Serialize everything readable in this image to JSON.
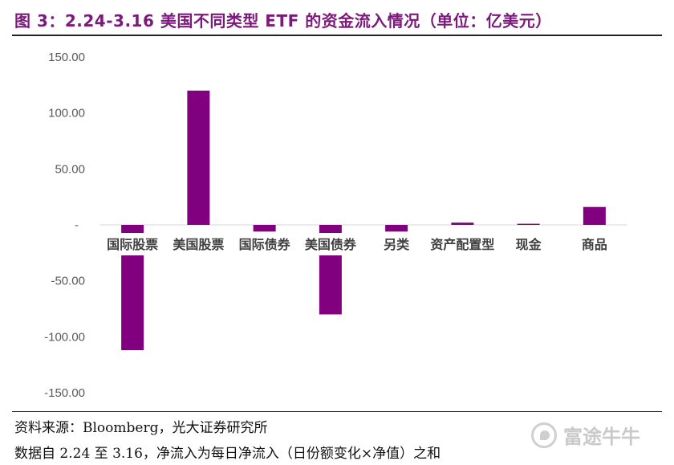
{
  "title": "图 3：2.24-3.16 美国不同类型 ETF 的资金流入情况（单位：亿美元）",
  "source": "资料来源：Bloomberg，光大证券研究所",
  "note": "数据自 2.24 至 3.16，净流入为每日净流入（日份额变化×净值）之和",
  "watermark": "富途牛牛",
  "chart_data": {
    "type": "bar",
    "categories": [
      "国际股票",
      "美国股票",
      "国际债券",
      "美国债券",
      "另类",
      "资产配置型",
      "现金",
      "商品"
    ],
    "values": [
      -112,
      120,
      -6,
      -80,
      -6,
      2,
      1,
      16
    ],
    "ylim": [
      -150,
      150
    ],
    "yticks": [
      150,
      100,
      50,
      0,
      -50,
      -100,
      -150
    ],
    "ytick_labels": [
      "150.00",
      "100.00",
      "50.00",
      "-",
      "-50.00",
      "-100.00",
      "-150.00"
    ],
    "bar_color": "#800080",
    "grid": false
  }
}
